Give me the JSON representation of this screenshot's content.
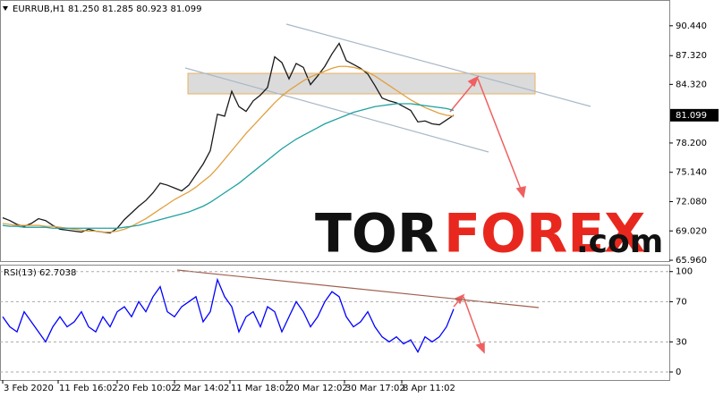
{
  "chart_data": [
    {
      "type": "line",
      "title": "EURRUB,H1  81.250 81.285 80.923 81.099",
      "xlim": [
        0,
        93.125
      ],
      "ylim": [
        65.87,
        93.13
      ],
      "yticks": [
        {
          "value": 90.44,
          "label": "90.440"
        },
        {
          "value": 87.32,
          "label": "87.320"
        },
        {
          "value": 84.32,
          "label": "84.320"
        },
        {
          "value": 78.2,
          "label": "78.200"
        },
        {
          "value": 75.14,
          "label": "75.140"
        },
        {
          "value": 72.08,
          "label": "72.080"
        },
        {
          "value": 69.02,
          "label": "69.020"
        },
        {
          "value": 65.96,
          "label": "65.960"
        }
      ],
      "last_price": 81.099,
      "grid": false,
      "watermark": [
        "TOR",
        "FOREX",
        ".com"
      ],
      "series": [
        {
          "color": "#1a1a1a",
          "values": [
            70.4,
            70.1,
            69.7,
            69.5,
            69.8,
            70.3,
            70.1,
            69.6,
            69.2,
            69.1,
            69.0,
            68.9,
            69.2,
            69.0,
            68.9,
            68.8,
            69.3,
            70.2,
            70.9,
            71.6,
            72.2,
            73.0,
            74.0,
            73.8,
            73.5,
            73.2,
            73.8,
            74.9,
            76.0,
            77.4,
            81.2,
            81.0,
            83.6,
            82.0,
            81.5,
            82.6,
            83.2,
            84.0,
            87.2,
            86.6,
            84.9,
            86.5,
            86.1,
            84.3,
            85.2,
            86.2,
            87.5,
            88.6,
            86.8,
            86.4,
            86.0,
            85.4,
            84.2,
            82.9,
            82.6,
            82.4,
            82.0,
            81.6,
            80.4,
            80.5,
            80.2,
            80.1,
            80.6,
            81.1
          ]
        },
        {
          "color": "#e0a040",
          "values": [
            69.8,
            69.7,
            69.6,
            69.6,
            69.6,
            69.6,
            69.5,
            69.5,
            69.4,
            69.3,
            69.2,
            69.1,
            69.0,
            69.0,
            68.9,
            68.9,
            69.0,
            69.2,
            69.5,
            69.9,
            70.3,
            70.8,
            71.3,
            71.8,
            72.3,
            72.7,
            73.1,
            73.6,
            74.2,
            74.8,
            75.6,
            76.5,
            77.4,
            78.3,
            79.2,
            80.0,
            80.8,
            81.6,
            82.4,
            83.1,
            83.7,
            84.2,
            84.7,
            85.1,
            85.4,
            85.7,
            86.0,
            86.2,
            86.2,
            86.1,
            85.9,
            85.6,
            85.2,
            84.7,
            84.2,
            83.7,
            83.2,
            82.7,
            82.3,
            81.9,
            81.6,
            81.3,
            81.1,
            81.0
          ]
        },
        {
          "color": "#20a0a0",
          "values": [
            69.6,
            69.5,
            69.5,
            69.4,
            69.4,
            69.4,
            69.4,
            69.3,
            69.3,
            69.3,
            69.3,
            69.3,
            69.3,
            69.3,
            69.3,
            69.3,
            69.3,
            69.4,
            69.5,
            69.6,
            69.8,
            70.0,
            70.2,
            70.4,
            70.6,
            70.8,
            71.0,
            71.3,
            71.6,
            72.0,
            72.5,
            73.0,
            73.5,
            74.0,
            74.6,
            75.2,
            75.8,
            76.4,
            77.0,
            77.6,
            78.1,
            78.6,
            79.0,
            79.4,
            79.8,
            80.2,
            80.5,
            80.8,
            81.1,
            81.4,
            81.6,
            81.8,
            82.0,
            82.1,
            82.2,
            82.3,
            82.3,
            82.3,
            82.2,
            82.1,
            82.0,
            81.9,
            81.8,
            81.6
          ]
        }
      ]
    },
    {
      "type": "line",
      "title": "RSI(13) 62.7038",
      "xlim": [
        0,
        93.125
      ],
      "ylim": [
        -8,
        106
      ],
      "yticks": [
        100,
        70,
        30,
        0
      ],
      "grid": true,
      "xticks": [
        {
          "value": 0,
          "label": "3 Feb 2020"
        },
        {
          "value": 7.75,
          "label": "11 Feb 16:02"
        },
        {
          "value": 16,
          "label": "20 Feb 10:02"
        },
        {
          "value": 24,
          "label": "2 Mar 14:02"
        },
        {
          "value": 31.75,
          "label": "11 Mar 18:02"
        },
        {
          "value": 39.75,
          "label": "20 Mar 12:02"
        },
        {
          "value": 47.75,
          "label": "30 Mar 17:02"
        },
        {
          "value": 55.75,
          "label": "8 Apr 11:02"
        }
      ],
      "series": [
        {
          "color": "#0000ff",
          "values": [
            55,
            45,
            40,
            60,
            50,
            40,
            30,
            45,
            55,
            45,
            50,
            60,
            45,
            40,
            55,
            45,
            60,
            65,
            55,
            70,
            60,
            75,
            85,
            60,
            55,
            65,
            70,
            75,
            50,
            60,
            92,
            75,
            65,
            40,
            55,
            60,
            45,
            65,
            60,
            40,
            55,
            70,
            60,
            45,
            55,
            70,
            80,
            75,
            55,
            45,
            50,
            60,
            45,
            35,
            30,
            35,
            28,
            32,
            20,
            35,
            30,
            35,
            45,
            62.7
          ]
        }
      ]
    }
  ]
}
